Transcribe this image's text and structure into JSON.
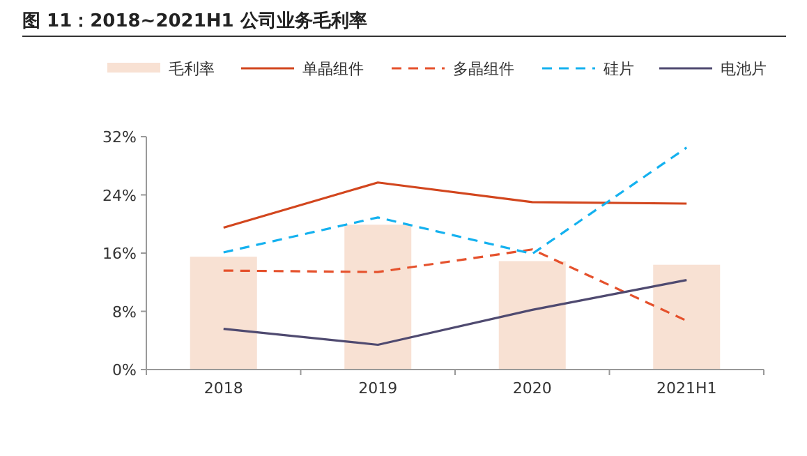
{
  "chart_data": {
    "type": "bar",
    "title": "图 11：2018~2021H1 公司业务毛利率",
    "categories": [
      "2018",
      "2019",
      "2020",
      "2021H1"
    ],
    "series": [
      {
        "name": "毛利率",
        "color": "#f8e1d3",
        "values": [
          15.5,
          19.9,
          14.9,
          14.4
        ]
      },
      {
        "name": "单晶组件",
        "type": "line",
        "color": "#d2461e",
        "line_style": "solid",
        "values": [
          19.5,
          25.7,
          23.0,
          22.8
        ]
      },
      {
        "name": "多晶组件",
        "type": "line",
        "color": "#e5512c",
        "line_style": "dashed",
        "values": [
          13.6,
          13.4,
          16.5,
          6.7
        ]
      },
      {
        "name": "硅片",
        "type": "line",
        "color": "#14b1ef",
        "line_style": "dashed",
        "values": [
          16.1,
          20.9,
          15.9,
          30.5
        ]
      },
      {
        "name": "电池片",
        "type": "line",
        "color": "#4f4a70",
        "line_style": "solid",
        "values": [
          5.6,
          3.4,
          8.2,
          12.3
        ]
      }
    ],
    "ylim": [
      0,
      32
    ],
    "yticks": [
      {
        "value": 0,
        "label": "0%"
      },
      {
        "value": 8,
        "label": "8%"
      },
      {
        "value": 16,
        "label": "16%"
      },
      {
        "value": 24,
        "label": "24%"
      },
      {
        "value": 32,
        "label": "32%"
      }
    ],
    "legend": "top",
    "grid": false,
    "marker": "none"
  }
}
